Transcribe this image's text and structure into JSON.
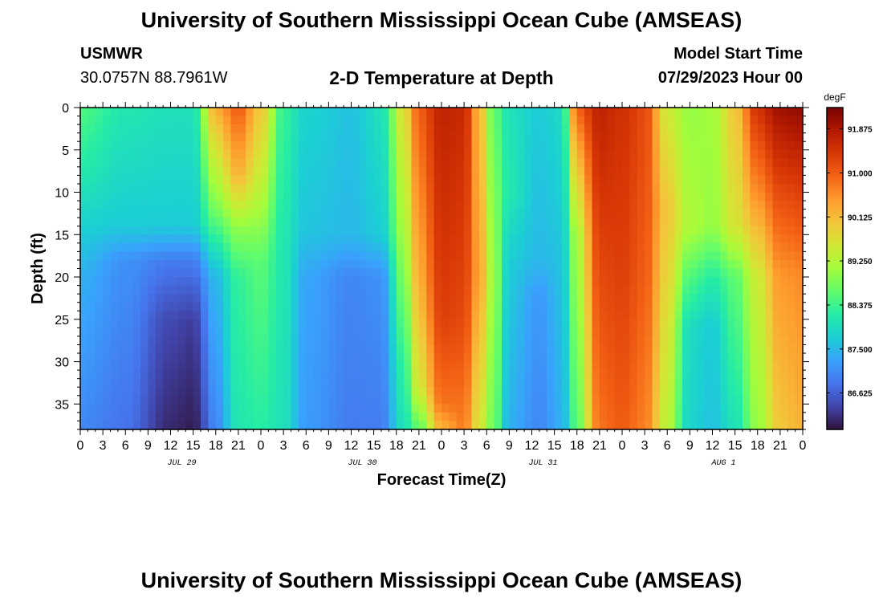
{
  "page": {
    "title": "University of Southern Mississippi Ocean Cube (AMSEAS)",
    "station": "USMWR",
    "coordinates": "30.0757N  88.7961W",
    "subtitle": "2-D Temperature at Depth",
    "model_start_label": "Model Start Time",
    "model_start_value": "07/29/2023 Hour 00",
    "footer_title": "University of Southern Mississippi Ocean Cube (AMSEAS)"
  },
  "chart_data": {
    "type": "heatmap",
    "title": "2-D Temperature at Depth",
    "xlabel": "Forecast Time(Z)",
    "ylabel": "Depth (ft)",
    "x_unit": "hours from 07/29/2023 00Z",
    "xlim": [
      0,
      96
    ],
    "ylim": [
      0,
      38
    ],
    "y_inverted": true,
    "x_tick_labels": [
      "0",
      "3",
      "6",
      "9",
      "12",
      "15",
      "18",
      "21",
      "0",
      "3",
      "6",
      "9",
      "12",
      "15",
      "18",
      "21",
      "0",
      "3",
      "6",
      "9",
      "12",
      "15",
      "18",
      "21",
      "0",
      "3",
      "6",
      "9",
      "12",
      "15",
      "18",
      "21",
      "0"
    ],
    "date_labels": [
      "JUL 29",
      "JUL 30",
      "JUL 31",
      "AUG 1"
    ],
    "y_ticks": [
      0,
      5,
      10,
      15,
      20,
      25,
      30,
      35
    ],
    "colorbar": {
      "unit": "degF",
      "min": 85.9,
      "max": 92.3,
      "ticks": [
        "91.875",
        "91.000",
        "90.125",
        "89.250",
        "88.375",
        "87.500",
        "86.625"
      ],
      "colors": [
        "#30123b",
        "#4145ab",
        "#4675ed",
        "#39a2fc",
        "#1bcfd4",
        "#24eca6",
        "#61fc6c",
        "#a4fc3b",
        "#d1e834",
        "#f3c63a",
        "#fe9b2d",
        "#f36315",
        "#d93806",
        "#b11901",
        "#7a0403"
      ]
    },
    "profiles": [
      {
        "hour": 0,
        "temps": [
          [
            0,
            88.5
          ],
          [
            10,
            88.0
          ],
          [
            20,
            87.4
          ],
          [
            38,
            87.0
          ]
        ]
      },
      {
        "hour": 6,
        "temps": [
          [
            0,
            88.1
          ],
          [
            14,
            87.7
          ],
          [
            18,
            87.1
          ],
          [
            38,
            86.8
          ]
        ]
      },
      {
        "hour": 12,
        "temps": [
          [
            0,
            88.0
          ],
          [
            14,
            87.7
          ],
          [
            18,
            86.9
          ],
          [
            25,
            86.4
          ],
          [
            38,
            86.1
          ]
        ]
      },
      {
        "hour": 15,
        "temps": [
          [
            0,
            88.0
          ],
          [
            14,
            87.7
          ],
          [
            18,
            86.9
          ],
          [
            25,
            86.3
          ],
          [
            38,
            86.0
          ]
        ]
      },
      {
        "hour": 18,
        "temps": [
          [
            0,
            90.3
          ],
          [
            6,
            89.5
          ],
          [
            12,
            88.8
          ],
          [
            20,
            87.5
          ],
          [
            38,
            87.0
          ]
        ]
      },
      {
        "hour": 21,
        "temps": [
          [
            0,
            91.0
          ],
          [
            8,
            90.2
          ],
          [
            14,
            89.0
          ],
          [
            20,
            88.3
          ],
          [
            38,
            88.1
          ]
        ]
      },
      {
        "hour": 24,
        "temps": [
          [
            0,
            90.0
          ],
          [
            10,
            89.3
          ],
          [
            18,
            88.6
          ],
          [
            38,
            88.2
          ]
        ]
      },
      {
        "hour": 27,
        "temps": [
          [
            0,
            88.3
          ],
          [
            15,
            88.1
          ],
          [
            38,
            88.0
          ]
        ]
      },
      {
        "hour": 30,
        "temps": [
          [
            0,
            87.8
          ],
          [
            15,
            87.6
          ],
          [
            20,
            87.3
          ],
          [
            38,
            87.2
          ]
        ]
      },
      {
        "hour": 36,
        "temps": [
          [
            0,
            87.6
          ],
          [
            15,
            87.5
          ],
          [
            20,
            87.0
          ],
          [
            38,
            86.9
          ]
        ]
      },
      {
        "hour": 40,
        "temps": [
          [
            0,
            88.0
          ],
          [
            15,
            87.7
          ],
          [
            20,
            87.1
          ],
          [
            38,
            86.9
          ]
        ]
      },
      {
        "hour": 43,
        "temps": [
          [
            0,
            89.7
          ],
          [
            15,
            89.1
          ],
          [
            30,
            88.3
          ],
          [
            38,
            88.0
          ]
        ]
      },
      {
        "hour": 45,
        "temps": [
          [
            0,
            91.0
          ],
          [
            20,
            90.3
          ],
          [
            33,
            89.6
          ],
          [
            38,
            88.6
          ]
        ]
      },
      {
        "hour": 48,
        "temps": [
          [
            0,
            91.7
          ],
          [
            25,
            91.3
          ],
          [
            35,
            90.8
          ],
          [
            38,
            90.2
          ]
        ]
      },
      {
        "hour": 51,
        "temps": [
          [
            0,
            91.6
          ],
          [
            25,
            91.2
          ],
          [
            38,
            90.7
          ]
        ]
      },
      {
        "hour": 53,
        "temps": [
          [
            0,
            90.2
          ],
          [
            20,
            90.4
          ],
          [
            38,
            89.6
          ]
        ]
      },
      {
        "hour": 55,
        "temps": [
          [
            0,
            88.6
          ],
          [
            20,
            89.0
          ],
          [
            38,
            88.7
          ]
        ]
      },
      {
        "hour": 57,
        "temps": [
          [
            0,
            88.0
          ],
          [
            10,
            88.1
          ],
          [
            18,
            87.7
          ],
          [
            38,
            87.4
          ]
        ]
      },
      {
        "hour": 61,
        "temps": [
          [
            0,
            87.7
          ],
          [
            18,
            87.5
          ],
          [
            22,
            87.2
          ],
          [
            38,
            87.0
          ]
        ]
      },
      {
        "hour": 64,
        "temps": [
          [
            0,
            87.9
          ],
          [
            18,
            87.6
          ],
          [
            38,
            87.4
          ]
        ]
      },
      {
        "hour": 66,
        "temps": [
          [
            0,
            91.0
          ],
          [
            6,
            90.2
          ],
          [
            15,
            89.2
          ],
          [
            38,
            88.6
          ]
        ]
      },
      {
        "hour": 69,
        "temps": [
          [
            0,
            91.7
          ],
          [
            20,
            91.2
          ],
          [
            38,
            90.8
          ]
        ]
      },
      {
        "hour": 72,
        "temps": [
          [
            0,
            91.5
          ],
          [
            20,
            91.3
          ],
          [
            38,
            91.0
          ]
        ]
      },
      {
        "hour": 75,
        "temps": [
          [
            0,
            91.2
          ],
          [
            20,
            91.0
          ],
          [
            38,
            90.7
          ]
        ]
      },
      {
        "hour": 78,
        "temps": [
          [
            0,
            89.5
          ],
          [
            12,
            90.0
          ],
          [
            20,
            89.8
          ],
          [
            38,
            89.3
          ]
        ]
      },
      {
        "hour": 81,
        "temps": [
          [
            0,
            89.0
          ],
          [
            14,
            89.2
          ],
          [
            20,
            88.5
          ],
          [
            26,
            87.9
          ],
          [
            38,
            87.8
          ]
        ]
      },
      {
        "hour": 84,
        "temps": [
          [
            0,
            89.1
          ],
          [
            14,
            89.0
          ],
          [
            20,
            88.2
          ],
          [
            26,
            87.7
          ],
          [
            38,
            87.6
          ]
        ]
      },
      {
        "hour": 87,
        "temps": [
          [
            0,
            90.0
          ],
          [
            14,
            89.6
          ],
          [
            20,
            88.6
          ],
          [
            38,
            88.0
          ]
        ]
      },
      {
        "hour": 90,
        "temps": [
          [
            0,
            91.5
          ],
          [
            10,
            90.6
          ],
          [
            20,
            89.5
          ],
          [
            38,
            89.0
          ]
        ]
      },
      {
        "hour": 93,
        "temps": [
          [
            0,
            92.0
          ],
          [
            10,
            91.2
          ],
          [
            20,
            90.5
          ],
          [
            38,
            90.0
          ]
        ]
      },
      {
        "hour": 96,
        "temps": [
          [
            0,
            92.1
          ],
          [
            10,
            91.3
          ],
          [
            20,
            90.6
          ],
          [
            38,
            90.2
          ]
        ]
      }
    ]
  }
}
